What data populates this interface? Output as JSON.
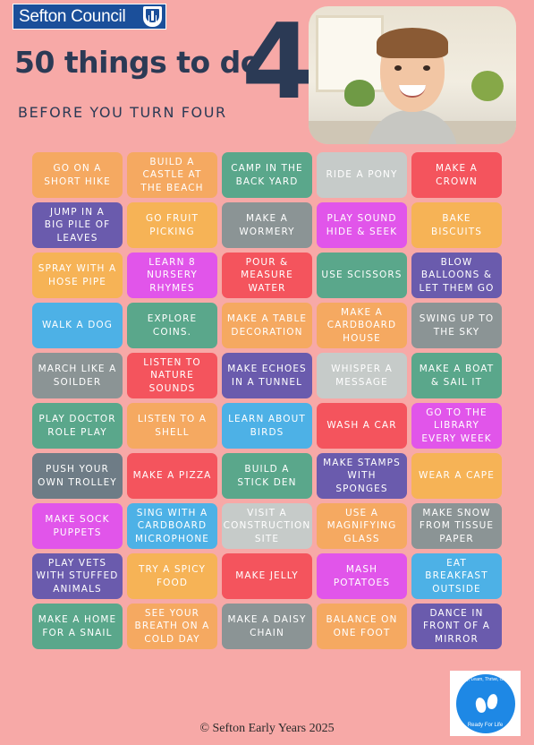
{
  "header": {
    "logo_text": "Sefton Council",
    "title": "50 things to do",
    "title_number": "4",
    "subtitle": "BEFORE YOU TURN FOUR"
  },
  "colors": {
    "background": "#f7a9a7",
    "title": "#2b3a55",
    "logo_blue": "#1b4f9a"
  },
  "activities": [
    {
      "label": "GO ON A\nSHORT HIKE",
      "color": "orange"
    },
    {
      "label": "BUILD A\nCASTLE AT\nTHE BEACH",
      "color": "orange"
    },
    {
      "label": "CAMP IN THE\nBACK YARD",
      "color": "teal"
    },
    {
      "label": "RIDE A PONY",
      "color": "light"
    },
    {
      "label": "MAKE A\nCROWN",
      "color": "red"
    },
    {
      "label": "JUMP IN A\nBIG PILE OF\nLEAVES",
      "color": "purple"
    },
    {
      "label": "GO FRUIT\nPICKING",
      "color": "yellow"
    },
    {
      "label": "MAKE A\nWORMERY",
      "color": "grey"
    },
    {
      "label": "PLAY SOUND\nHIDE & SEEK",
      "color": "magenta"
    },
    {
      "label": "BAKE\nBISCUITS",
      "color": "yellow"
    },
    {
      "label": "SPRAY WITH A\nHOSE PIPE",
      "color": "yellow"
    },
    {
      "label": "LEARN 8\nNURSERY\nRHYMES",
      "color": "magenta"
    },
    {
      "label": "POUR &\nMEASURE\nWATER",
      "color": "red"
    },
    {
      "label": "USE SCISSORS",
      "color": "teal"
    },
    {
      "label": "BLOW\nBALLOONS &\nLET THEM GO",
      "color": "purple"
    },
    {
      "label": "WALK A DOG",
      "color": "blue"
    },
    {
      "label": "EXPLORE\nCOINS.",
      "color": "teal"
    },
    {
      "label": "MAKE A TABLE\nDECORATION",
      "color": "orange"
    },
    {
      "label": "MAKE A\nCARDBOARD\nHOUSE",
      "color": "orange"
    },
    {
      "label": "SWING UP TO\nTHE SKY",
      "color": "grey"
    },
    {
      "label": "MARCH LIKE A\nSOILDER",
      "color": "grey"
    },
    {
      "label": "LISTEN TO\nNATURE\nSOUNDS",
      "color": "red"
    },
    {
      "label": "MAKE ECHOES\nIN A TUNNEL",
      "color": "purple"
    },
    {
      "label": "WHISPER A\nMESSAGE",
      "color": "light"
    },
    {
      "label": "MAKE A BOAT\n& SAIL IT",
      "color": "teal"
    },
    {
      "label": "PLAY DOCTOR\nROLE PLAY",
      "color": "teal"
    },
    {
      "label": "LISTEN TO A\nSHELL",
      "color": "orange"
    },
    {
      "label": "LEARN ABOUT\nBIRDS",
      "color": "blue"
    },
    {
      "label": "WASH A CAR",
      "color": "red"
    },
    {
      "label": "GO TO THE\nLIBRARY\nEVERY WEEK",
      "color": "magenta"
    },
    {
      "label": "PUSH YOUR\nOWN TROLLEY",
      "color": "slate"
    },
    {
      "label": "MAKE A PIZZA",
      "color": "red"
    },
    {
      "label": "BUILD A\nSTICK DEN",
      "color": "teal"
    },
    {
      "label": "MAKE STAMPS\nWITH\nSPONGES",
      "color": "purple"
    },
    {
      "label": "WEAR A CAPE",
      "color": "yellow"
    },
    {
      "label": "MAKE SOCK\nPUPPETS",
      "color": "magenta"
    },
    {
      "label": "SING WITH A\nCARDBOARD\nMICROPHONE",
      "color": "blue"
    },
    {
      "label": "VISIT A\nCONSTRUCTION\nSITE",
      "color": "light"
    },
    {
      "label": "USE A\nMAGNIFYING\nGLASS",
      "color": "orange"
    },
    {
      "label": "MAKE SNOW\nFROM TISSUE\nPAPER",
      "color": "grey"
    },
    {
      "label": "PLAY VETS\nWITH STUFFED\nANIMALS",
      "color": "purple"
    },
    {
      "label": "TRY A SPICY\nFOOD",
      "color": "yellow"
    },
    {
      "label": "MAKE JELLY",
      "color": "red"
    },
    {
      "label": "MASH\nPOTATOES",
      "color": "magenta"
    },
    {
      "label": "EAT\nBREAKFAST\nOUTSIDE",
      "color": "blue"
    },
    {
      "label": "MAKE A HOME\nFOR A SNAIL",
      "color": "teal"
    },
    {
      "label": "SEE YOUR\nBREATH ON A\nCOLD DAY",
      "color": "orange"
    },
    {
      "label": "MAKE A DAISY\nCHAIN",
      "color": "grey"
    },
    {
      "label": "BALANCE ON\nONE FOOT",
      "color": "orange"
    },
    {
      "label": "DANCE IN\nFRONT OF A\nMIRROR",
      "color": "purple"
    }
  ],
  "badge": {
    "text": "Play, Learn, Thrive, Grow",
    "tagline": "Ready For Life"
  },
  "footer": {
    "copyright": "© Sefton Early Years 2025"
  }
}
